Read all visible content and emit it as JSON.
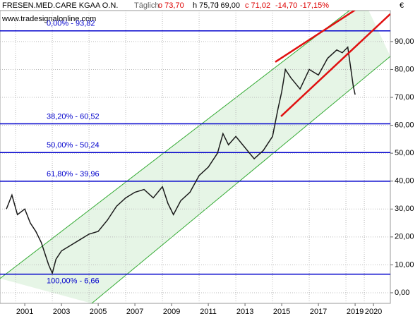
{
  "chart_data": {
    "type": "line",
    "header": {
      "title": "FRESEN.MED.CARE KGAA O.N.",
      "period": "Täglich",
      "open": "o 73,70",
      "high": "h 75,70",
      "low": "l 69,00",
      "close": "c 71,02",
      "change": "-14,70",
      "change_pct": "-17,15%"
    },
    "watermark": "www.tradesignalonline.com",
    "currency": "€",
    "xlim": [
      1999.65,
      2020.92
    ],
    "ylim": [
      -3.8,
      101.1
    ],
    "xticks": [
      2001,
      2003,
      2005,
      2007,
      2009,
      2011,
      2013,
      2015,
      2017,
      2019,
      2020
    ],
    "yticks": [
      {
        "value": 0,
        "label": "0,00"
      },
      {
        "value": 10,
        "label": "10,00"
      },
      {
        "value": 20,
        "label": "20,00"
      },
      {
        "value": 30,
        "label": "30,00"
      },
      {
        "value": 40,
        "label": "40,00"
      },
      {
        "value": 50,
        "label": "50,00"
      },
      {
        "value": 60,
        "label": "60,00"
      },
      {
        "value": 70,
        "label": "70,00"
      },
      {
        "value": 80,
        "label": "80,00"
      },
      {
        "value": 90,
        "label": "90,00"
      }
    ],
    "grid": true,
    "series": [
      {
        "name": "FRESEN.MED.CARE KGAA O.N.",
        "color": "#1a1a1a",
        "x": [
          2000.0,
          2000.3,
          2000.6,
          2001.0,
          2001.3,
          2001.6,
          2001.9,
          2002.1,
          2002.3,
          2002.5,
          2002.7,
          2003.0,
          2003.5,
          2004.0,
          2004.5,
          2005.0,
          2005.5,
          2006.0,
          2006.5,
          2007.0,
          2007.5,
          2008.0,
          2008.5,
          2008.8,
          2009.1,
          2009.5,
          2010.0,
          2010.5,
          2011.0,
          2011.5,
          2011.8,
          2012.1,
          2012.5,
          2013.0,
          2013.5,
          2014.0,
          2014.5,
          2014.8,
          2015.0,
          2015.2,
          2015.5,
          2016.0,
          2016.5,
          2017.0,
          2017.5,
          2018.0,
          2018.3,
          2018.6,
          2018.9,
          2019.0
        ],
        "values": [
          30,
          35,
          28,
          30,
          25,
          22,
          18,
          14,
          10,
          7,
          12,
          15,
          17,
          19,
          21,
          22,
          26,
          31,
          34,
          36,
          37,
          34,
          38,
          32,
          28,
          33,
          36,
          42,
          45,
          50,
          57,
          53,
          56,
          52,
          48,
          51,
          56,
          66,
          72,
          80,
          77,
          73,
          80,
          78,
          84,
          87,
          86,
          88,
          74,
          71
        ]
      }
    ],
    "fib_levels": [
      {
        "value": 93.82,
        "label": "0,00% - 93,82"
      },
      {
        "value": 60.52,
        "label": "38,20% - 60,52"
      },
      {
        "value": 50.24,
        "label": "50,00% - 50,24"
      },
      {
        "value": 39.96,
        "label": "61,80% - 39,96"
      },
      {
        "value": 6.66,
        "label": "100,00% - 6,66"
      }
    ],
    "channel": {
      "color": "#33aa33",
      "upper": {
        "x": [
          1999.65,
          2019.46
        ],
        "y": [
          5.1,
          105.0
        ]
      },
      "lower": {
        "x": [
          2004.65,
          2020.92
        ],
        "y": [
          -3.8,
          84.7
        ]
      }
    },
    "trendlines": [
      {
        "color": "#e01010",
        "x": [
          2014.65,
          2019.84
        ],
        "y": [
          82.7,
          104.9
        ]
      },
      {
        "color": "#e01010",
        "x": [
          2014.96,
          2020.92
        ],
        "y": [
          63.2,
          99.9
        ]
      }
    ]
  }
}
